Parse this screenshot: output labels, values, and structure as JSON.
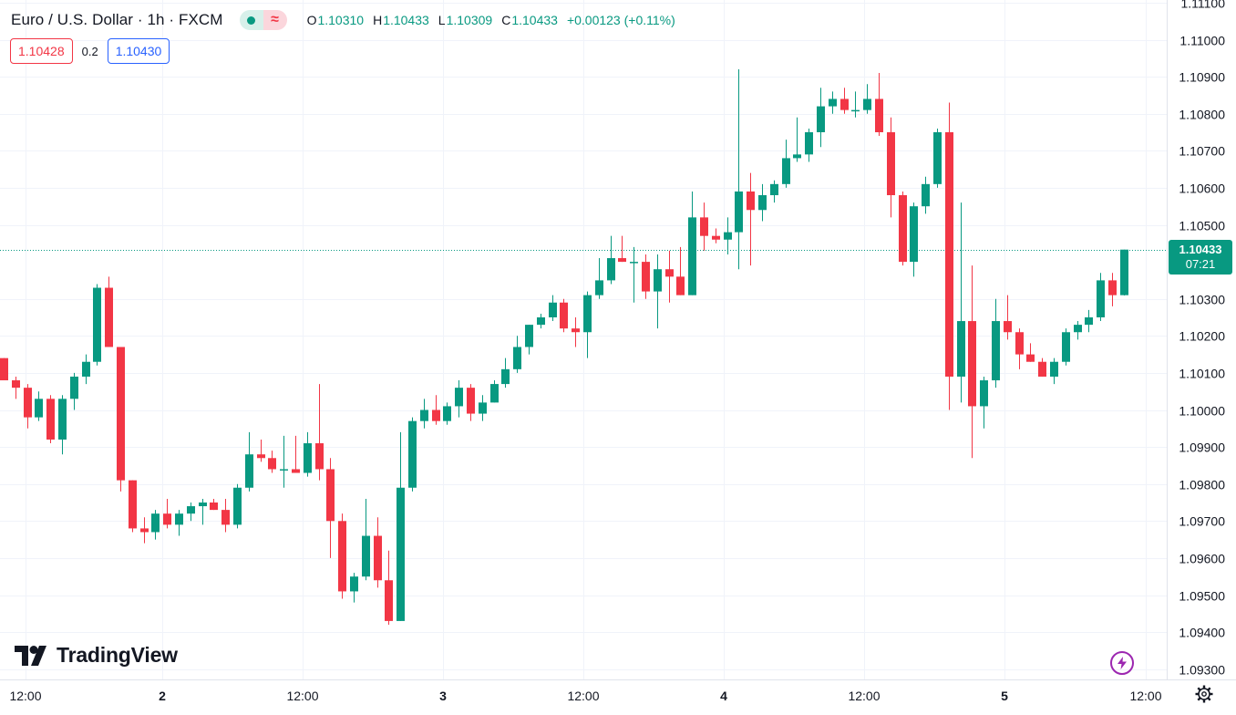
{
  "header": {
    "symbol": "Euro / U.S. Dollar · 1h · FXCM",
    "ohlc": [
      {
        "key": "O",
        "value": "1.10310"
      },
      {
        "key": "H",
        "value": "1.10433"
      },
      {
        "key": "L",
        "value": "1.10309"
      },
      {
        "key": "C",
        "value": "1.10433"
      }
    ],
    "change": "+0.00123 (+0.11%)",
    "status_icons": [
      "market-open-dot-icon",
      "delayed-wave-icon"
    ]
  },
  "quote": {
    "bid": "1.10428",
    "spread": "0.2",
    "ask": "1.10430"
  },
  "last_price": {
    "value": "1.10433",
    "countdown": "07:21"
  },
  "brand": {
    "name": "TradingView"
  },
  "colors": {
    "up": "#089981",
    "down": "#f23645",
    "grid": "#f0f3fa",
    "text": "#131722",
    "bid": "#f23645",
    "ask": "#2962ff"
  },
  "icons": [
    "tradingview-logo-icon",
    "lightning-bolt-icon",
    "settings-gear-icon"
  ],
  "chart_data": {
    "type": "candlestick",
    "title": "Euro / U.S. Dollar · 1h · FXCM",
    "y_axis": {
      "labels": [
        "1.11100",
        "1.11000",
        "1.10900",
        "1.10800",
        "1.10700",
        "1.10600",
        "1.10500",
        "1.10300",
        "1.10200",
        "1.10100",
        "1.10000",
        "1.09900",
        "1.09800",
        "1.09700",
        "1.09600",
        "1.09500",
        "1.09400",
        "1.09300"
      ],
      "range": [
        1.0926,
        1.111
      ]
    },
    "x_axis": {
      "labels": [
        "12:00",
        "2",
        "12:00",
        "3",
        "12:00",
        "4",
        "12:00",
        "5",
        "12:00"
      ],
      "bold_labels": [
        "2",
        "3",
        "4",
        "5"
      ]
    },
    "last_price": 1.10433,
    "candles": [
      [
        1.1014,
        1.1014,
        1.1008,
        1.1008
      ],
      [
        1.1008,
        1.1009,
        1.1003,
        1.1006
      ],
      [
        1.1006,
        1.1007,
        1.0995,
        1.0998
      ],
      [
        1.0998,
        1.1005,
        1.0997,
        1.1003
      ],
      [
        1.1003,
        1.1004,
        1.0991,
        1.0992
      ],
      [
        1.0992,
        1.1004,
        1.0988,
        1.1003
      ],
      [
        1.1003,
        1.101,
        1.1,
        1.1009
      ],
      [
        1.1009,
        1.1015,
        1.1007,
        1.1013
      ],
      [
        1.1013,
        1.1034,
        1.1012,
        1.1033
      ],
      [
        1.1033,
        1.1036,
        1.1017,
        1.1017
      ],
      [
        1.1017,
        1.1017,
        1.0978,
        1.0981
      ],
      [
        1.0981,
        1.0981,
        1.0967,
        1.0968
      ],
      [
        1.0968,
        1.0971,
        1.0964,
        1.0967
      ],
      [
        1.0967,
        1.0973,
        1.0965,
        1.0972
      ],
      [
        1.0972,
        1.0976,
        1.0968,
        1.0969
      ],
      [
        1.0969,
        1.0973,
        1.0966,
        1.0972
      ],
      [
        1.0972,
        1.0975,
        1.097,
        1.0974
      ],
      [
        1.0974,
        1.0976,
        1.0969,
        1.0975
      ],
      [
        1.0975,
        1.0976,
        1.0973,
        1.0973
      ],
      [
        1.0973,
        1.0976,
        1.0967,
        1.0969
      ],
      [
        1.0969,
        1.098,
        1.0968,
        1.0979
      ],
      [
        1.0979,
        1.0994,
        1.0978,
        1.0988
      ],
      [
        1.0988,
        1.0992,
        1.0986,
        1.0987
      ],
      [
        1.0987,
        1.0989,
        1.0983,
        1.0984
      ],
      [
        1.0984,
        1.0993,
        1.0979,
        1.0984
      ],
      [
        1.0984,
        1.0993,
        1.0983,
        1.0983
      ],
      [
        1.0983,
        1.0994,
        1.0982,
        1.0991
      ],
      [
        1.0991,
        1.1007,
        1.0981,
        1.0984
      ],
      [
        1.0984,
        1.0987,
        1.096,
        1.097
      ],
      [
        1.097,
        1.0972,
        1.0949,
        1.0951
      ],
      [
        1.0951,
        1.0956,
        1.0948,
        1.0955
      ],
      [
        1.0955,
        1.0976,
        1.0954,
        1.0966
      ],
      [
        1.0966,
        1.0971,
        1.0952,
        1.0954
      ],
      [
        1.0954,
        1.0962,
        1.0942,
        1.0943
      ],
      [
        1.0943,
        1.0994,
        1.0943,
        1.0979
      ],
      [
        1.0979,
        1.0998,
        1.0978,
        1.0997
      ],
      [
        1.0997,
        1.1003,
        1.0995,
        1.1
      ],
      [
        1.1,
        1.1004,
        1.0996,
        1.0997
      ],
      [
        1.0997,
        1.1002,
        1.0996,
        1.1001
      ],
      [
        1.1001,
        1.1008,
        1.0998,
        1.1006
      ],
      [
        1.1006,
        1.1007,
        1.0997,
        1.0999
      ],
      [
        1.0999,
        1.1004,
        1.0997,
        1.1002
      ],
      [
        1.1002,
        1.1008,
        1.1002,
        1.1007
      ],
      [
        1.1007,
        1.1014,
        1.1006,
        1.1011
      ],
      [
        1.1011,
        1.102,
        1.101,
        1.1017
      ],
      [
        1.1017,
        1.1023,
        1.1015,
        1.1023
      ],
      [
        1.1023,
        1.1026,
        1.1022,
        1.1025
      ],
      [
        1.1025,
        1.1031,
        1.1024,
        1.1029
      ],
      [
        1.1029,
        1.103,
        1.1021,
        1.1022
      ],
      [
        1.1022,
        1.1025,
        1.1017,
        1.1021
      ],
      [
        1.1021,
        1.1032,
        1.1014,
        1.1031
      ],
      [
        1.1031,
        1.1041,
        1.103,
        1.1035
      ],
      [
        1.1035,
        1.1047,
        1.1034,
        1.1041
      ],
      [
        1.1041,
        1.1047,
        1.104,
        1.104
      ],
      [
        1.104,
        1.1044,
        1.1029,
        1.104
      ],
      [
        1.104,
        1.1042,
        1.103,
        1.1032
      ],
      [
        1.1032,
        1.1042,
        1.1022,
        1.1038
      ],
      [
        1.1038,
        1.1043,
        1.1029,
        1.1036
      ],
      [
        1.1036,
        1.1044,
        1.1031,
        1.1031
      ],
      [
        1.1031,
        1.1059,
        1.1031,
        1.1052
      ],
      [
        1.1052,
        1.1056,
        1.1043,
        1.1047
      ],
      [
        1.1047,
        1.1049,
        1.1045,
        1.1046
      ],
      [
        1.1046,
        1.1052,
        1.1042,
        1.1048
      ],
      [
        1.1048,
        1.1092,
        1.1038,
        1.1059
      ],
      [
        1.1059,
        1.1064,
        1.1039,
        1.1054
      ],
      [
        1.1054,
        1.1061,
        1.1051,
        1.1058
      ],
      [
        1.1058,
        1.1062,
        1.1056,
        1.1061
      ],
      [
        1.1061,
        1.1073,
        1.106,
        1.1068
      ],
      [
        1.1068,
        1.1079,
        1.1067,
        1.1069
      ],
      [
        1.1069,
        1.1076,
        1.1067,
        1.1075
      ],
      [
        1.1075,
        1.1087,
        1.1071,
        1.1082
      ],
      [
        1.1082,
        1.1086,
        1.108,
        1.1084
      ],
      [
        1.1084,
        1.1087,
        1.108,
        1.1081
      ],
      [
        1.1081,
        1.1086,
        1.1079,
        1.1081
      ],
      [
        1.1081,
        1.1088,
        1.108,
        1.1084
      ],
      [
        1.1084,
        1.1091,
        1.1074,
        1.1075
      ],
      [
        1.1075,
        1.1079,
        1.1052,
        1.1058
      ],
      [
        1.1058,
        1.1059,
        1.1039,
        1.104
      ],
      [
        1.104,
        1.1056,
        1.1036,
        1.1055
      ],
      [
        1.1055,
        1.1063,
        1.1053,
        1.1061
      ],
      [
        1.1061,
        1.1076,
        1.106,
        1.1075
      ],
      [
        1.1075,
        1.1083,
        1.1,
        1.1009
      ],
      [
        1.1009,
        1.1056,
        1.1002,
        1.1024
      ],
      [
        1.1024,
        1.1039,
        1.0987,
        1.1001
      ],
      [
        1.1001,
        1.1009,
        1.0995,
        1.1008
      ],
      [
        1.1008,
        1.103,
        1.1006,
        1.1024
      ],
      [
        1.1024,
        1.1031,
        1.1019,
        1.1021
      ],
      [
        1.1021,
        1.1022,
        1.1011,
        1.1015
      ],
      [
        1.1015,
        1.1018,
        1.1013,
        1.1013
      ],
      [
        1.1013,
        1.1014,
        1.1009,
        1.1009
      ],
      [
        1.1009,
        1.1014,
        1.1007,
        1.1013
      ],
      [
        1.1013,
        1.1022,
        1.1012,
        1.1021
      ],
      [
        1.1021,
        1.1024,
        1.1019,
        1.1023
      ],
      [
        1.1023,
        1.1027,
        1.1021,
        1.1025
      ],
      [
        1.1025,
        1.1037,
        1.1024,
        1.1035
      ],
      [
        1.1035,
        1.1037,
        1.1028,
        1.1031
      ],
      [
        1.1031,
        1.10433,
        1.10309,
        1.10433
      ]
    ]
  }
}
